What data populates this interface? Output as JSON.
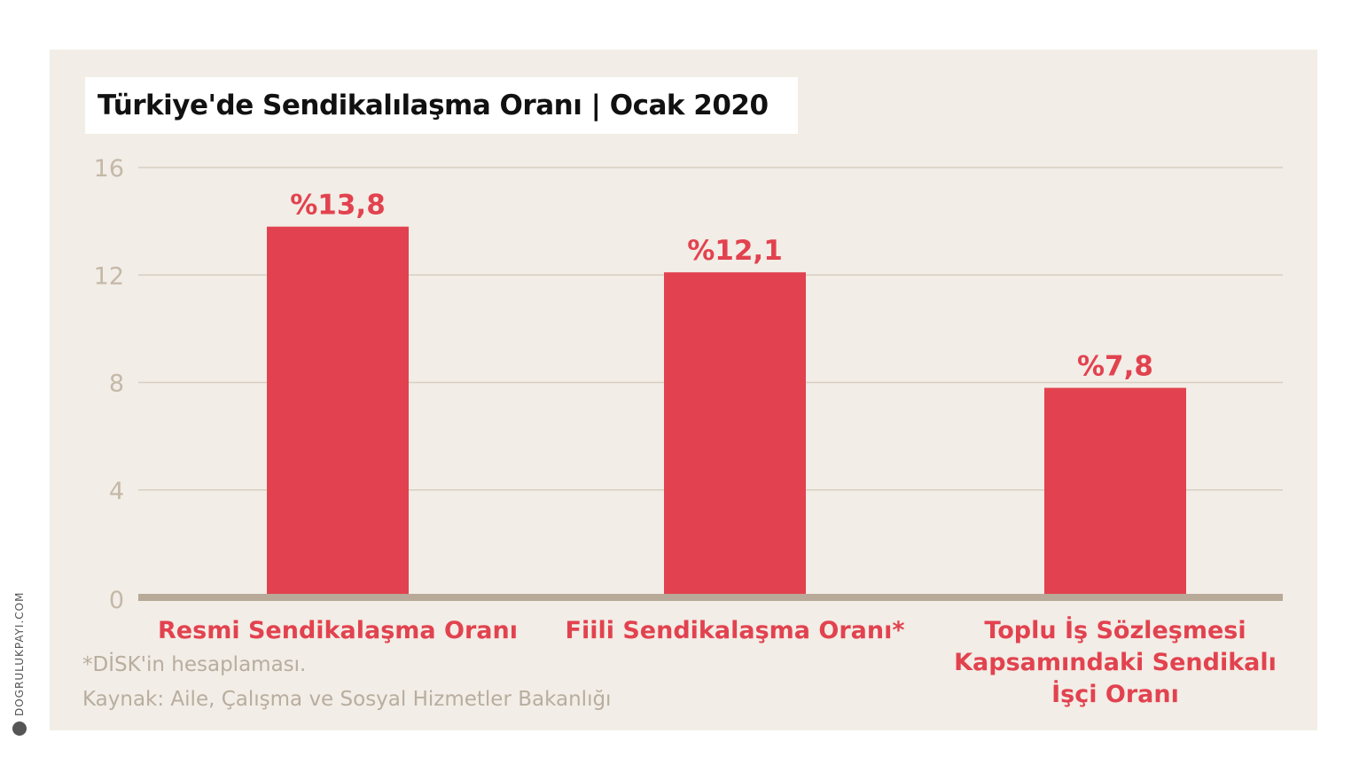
{
  "chart_data": {
    "type": "bar",
    "title": "Türkiye'de Sendikalılaşma Oranı | Ocak 2020",
    "categories": [
      [
        "Resmi Sendikalaşma Oranı"
      ],
      [
        "Fiili Sendikalaşma Oranı*"
      ],
      [
        "Toplu İş Sözleşmesi",
        "Kapsamındaki Sendikalı",
        "İşçi Oranı"
      ]
    ],
    "values": [
      13.8,
      12.1,
      7.8
    ],
    "data_labels": [
      "%13,8",
      "%12,1",
      "%7,8"
    ],
    "y_ticks": [
      "0",
      "4",
      "8",
      "12",
      "16"
    ],
    "ylim": [
      0,
      16
    ],
    "grid": true,
    "bar_color": "#e2424f",
    "xlabel": "",
    "ylabel": ""
  },
  "footnote": "*DİSK'in hesaplaması.",
  "source": "Kaynak: Aile, Çalışma ve Sosyal Hizmetler Bakanlığı",
  "brand": {
    "text": "DOGRULUKPAYI.COM",
    "icon": "check-icon"
  }
}
